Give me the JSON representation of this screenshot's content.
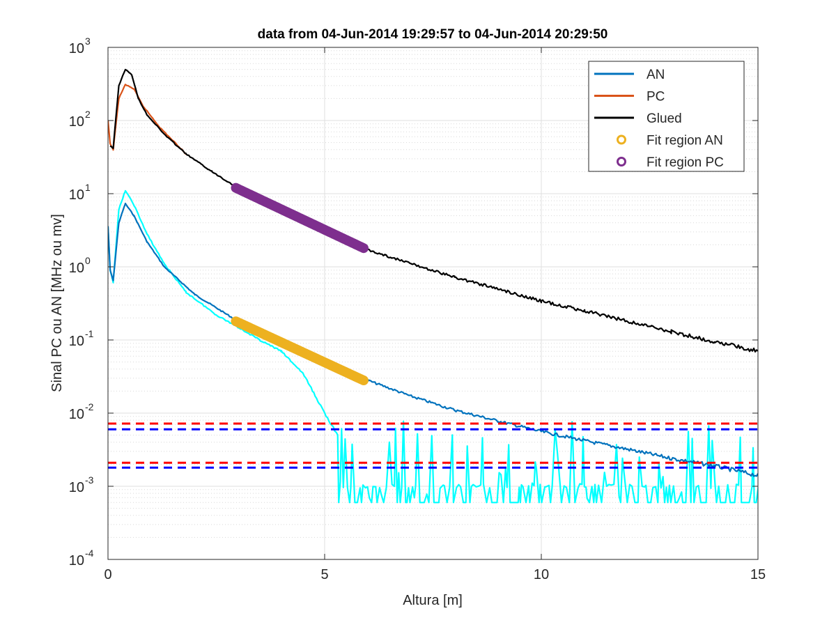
{
  "chart_data": {
    "type": "line",
    "title": "data from 04-Jun-2014 19:29:57 to 04-Jun-2014 20:29:50",
    "xlabel": "Altura [m]",
    "ylabel": "Sinal PC ou AN [MHz ou mv]",
    "xlim": [
      0,
      15
    ],
    "ylim": [
      0.0001,
      1000
    ],
    "yscale": "log",
    "grid": true,
    "minor_grid": true,
    "x_ticks": [
      0,
      5,
      10,
      15
    ],
    "x_tick_labels": [
      "0",
      "5",
      "10",
      "15"
    ],
    "y_ticks": [
      0.0001,
      0.001,
      0.01,
      0.1,
      1,
      10,
      100,
      1000
    ],
    "y_tick_labels": [
      {
        "base": "10",
        "exp": "-4"
      },
      {
        "base": "10",
        "exp": "-3"
      },
      {
        "base": "10",
        "exp": "-2"
      },
      {
        "base": "10",
        "exp": "-1"
      },
      {
        "base": "10",
        "exp": "0"
      },
      {
        "base": "10",
        "exp": "1"
      },
      {
        "base": "10",
        "exp": "2"
      },
      {
        "base": "10",
        "exp": "3"
      }
    ],
    "legend_position": "top-right",
    "legend": [
      {
        "label": "AN",
        "color": "#0072BD",
        "marker": "line"
      },
      {
        "label": "PC",
        "color": "#D95319",
        "marker": "line"
      },
      {
        "label": "Glued",
        "color": "#000000",
        "marker": "line"
      },
      {
        "label": "Fit region AN",
        "color": "#EDB120",
        "marker": "circle"
      },
      {
        "label": "Fit region PC",
        "color": "#7E2F8E",
        "marker": "circle"
      }
    ],
    "series": [
      {
        "name": "AN",
        "color": "#0072BD",
        "x": [
          0,
          0.05,
          0.12,
          0.25,
          0.4,
          0.6,
          0.9,
          1.3,
          2,
          3,
          4,
          5,
          6,
          7,
          8,
          9,
          10,
          11,
          12,
          13,
          14,
          15
        ],
        "y": [
          3.6,
          0.9,
          0.65,
          4,
          7.3,
          5,
          2.2,
          1,
          0.42,
          0.18,
          0.09,
          0.052,
          0.028,
          0.017,
          0.011,
          0.0078,
          0.0056,
          0.0042,
          0.0032,
          0.0024,
          0.0019,
          0.0014
        ]
      },
      {
        "name": "PC",
        "color": "#D95319",
        "x": [
          0,
          0.05,
          0.12,
          0.25,
          0.4,
          0.6,
          0.8,
          1.2,
          1.8
        ],
        "y": [
          100,
          48,
          40,
          200,
          310,
          270,
          160,
          80,
          35
        ]
      },
      {
        "name": "Glued",
        "color": "#000000",
        "x": [
          0.05,
          0.12,
          0.25,
          0.4,
          0.55,
          0.7,
          0.9,
          1.3,
          1.8,
          2.4,
          3,
          4,
          5,
          6,
          7,
          8,
          9,
          10,
          11,
          12,
          13,
          14,
          15
        ],
        "y": [
          45,
          42,
          300,
          500,
          420,
          200,
          120,
          65,
          35,
          20,
          12,
          5.5,
          3.2,
          1.7,
          1.1,
          0.72,
          0.5,
          0.34,
          0.25,
          0.18,
          0.13,
          0.095,
          0.07
        ]
      },
      {
        "color": "#00FFFF",
        "x": [
          0,
          0.05,
          0.12,
          0.25,
          0.4,
          0.6,
          0.9,
          1.3,
          1.8,
          2.5,
          3,
          3.5,
          4,
          4.5,
          5,
          5.3
        ],
        "y": [
          3.5,
          0.9,
          0.62,
          6,
          11,
          7,
          2.8,
          1.1,
          0.45,
          0.22,
          0.15,
          0.1,
          0.07,
          0.035,
          0.01,
          0.005
        ]
      },
      {
        "color": "#FF0000",
        "dash": true,
        "x": [
          0,
          15
        ],
        "y": [
          0.0072,
          0.0072
        ]
      },
      {
        "color": "#0000FF",
        "dash": true,
        "x": [
          0,
          15
        ],
        "y": [
          0.006,
          0.006
        ]
      },
      {
        "color": "#FF0000",
        "dash": true,
        "x": [
          0,
          15
        ],
        "y": [
          0.0021,
          0.0021
        ]
      },
      {
        "color": "#0000FF",
        "dash": true,
        "x": [
          0,
          15
        ],
        "y": [
          0.0018,
          0.0018
        ]
      }
    ],
    "fit_regions": [
      {
        "name": "Fit region AN",
        "color": "#EDB120",
        "x": [
          2.95,
          5.9
        ],
        "y": [
          0.18,
          0.028
        ]
      },
      {
        "name": "Fit region PC",
        "color": "#7E2F8E",
        "x": [
          2.95,
          5.9
        ],
        "y": [
          12,
          1.8
        ]
      }
    ]
  }
}
